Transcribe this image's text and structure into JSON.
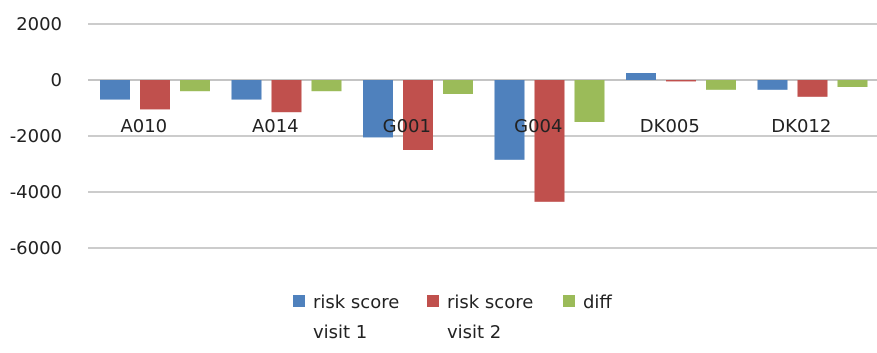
{
  "chart_data": {
    "type": "bar",
    "categories": [
      "A010",
      "A014",
      "G001",
      "G004",
      "DK005",
      "DK012"
    ],
    "series": [
      {
        "name": "risk score visit 1",
        "legend_lines": [
          "risk score",
          "visit 1"
        ],
        "color": "#4F81BD",
        "values": [
          -700,
          -700,
          -2050,
          -2850,
          250,
          -350
        ]
      },
      {
        "name": "risk score visit 2",
        "legend_lines": [
          "risk score",
          "visit 2"
        ],
        "color": "#C0504D",
        "values": [
          -1050,
          -1150,
          -2500,
          -4350,
          -50,
          -600
        ]
      },
      {
        "name": "diff",
        "legend_lines": [
          "diff"
        ],
        "color": "#9BBB59",
        "values": [
          -400,
          -400,
          -500,
          -1500,
          -350,
          -250
        ]
      }
    ],
    "ylim": [
      -6000,
      2000
    ],
    "yticks": [
      2000,
      0,
      -2000,
      -4000,
      -6000
    ],
    "ytick_labels": [
      "2000",
      "0",
      "-2000",
      "-4000",
      "-6000"
    ],
    "grid": true,
    "legend_position": "bottom",
    "title": "",
    "xlabel": "",
    "ylabel": ""
  }
}
